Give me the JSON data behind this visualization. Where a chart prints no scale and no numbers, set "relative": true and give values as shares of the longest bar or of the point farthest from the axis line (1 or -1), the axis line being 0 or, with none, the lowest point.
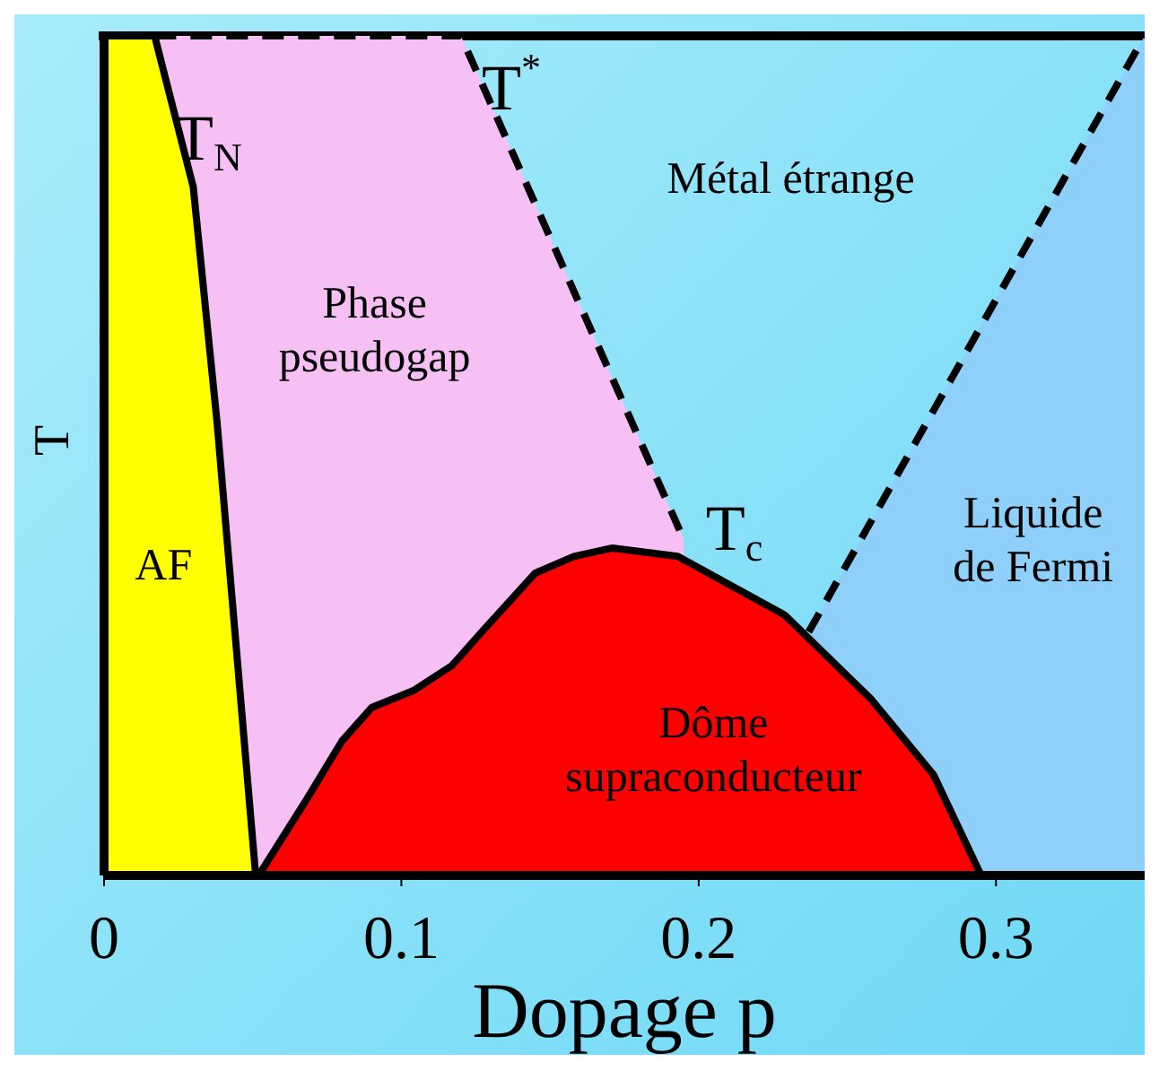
{
  "chart_data": {
    "type": "area",
    "relative": true,
    "xlabel": "Dopage p",
    "ylabel": "T",
    "xlim": [
      0,
      0.35
    ],
    "xticks": [
      0,
      {
        "value": 0.1,
        "label": "0.1"
      },
      {
        "value": 0.2,
        "label": "0.2"
      },
      {
        "value": 0.3,
        "label": "0.3"
      }
    ],
    "series": [
      {
        "color": "#f7c0f5",
        "line_style": "dashed",
        "x": [
          0.017,
          0.12,
          0.195
        ],
        "values": [
          1,
          1,
          0.4
        ]
      },
      {
        "color": "#8fd0fa",
        "line_style": "dashed",
        "x": [
          0.237,
          0.35
        ],
        "values": [
          0.29,
          1
        ]
      },
      {
        "color": "#ffff00",
        "x": [
          0,
          0.017,
          0.03,
          0.038,
          0.051
        ],
        "values": [
          1,
          1,
          0.82,
          0.54,
          0
        ]
      },
      {
        "color": "#ff0000",
        "x": [
          0.052,
          0.068,
          0.08,
          0.09,
          0.104,
          0.117,
          0.127,
          0.145,
          0.158,
          0.171,
          0.193,
          0.229,
          0.258,
          0.279,
          0.295
        ],
        "values": [
          0,
          0.09,
          0.16,
          0.2,
          0.22,
          0.25,
          0.29,
          0.36,
          0.38,
          0.39,
          0.38,
          0.31,
          0.21,
          0.12,
          0
        ]
      }
    ],
    "annotations": [
      "T$_{N}$",
      "T$^{*}$",
      "T$_{c}$",
      "AF",
      "Phase pseudogap",
      "Métal étrange",
      "Liquide de Fermi",
      "Dôme supraconducteur"
    ]
  }
}
